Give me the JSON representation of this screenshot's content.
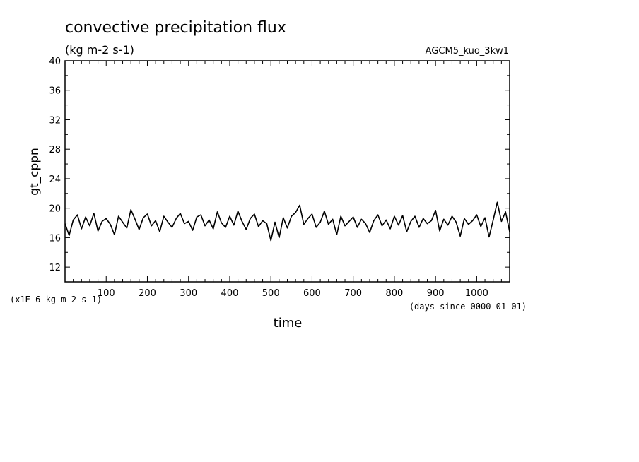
{
  "chart_data": {
    "type": "line",
    "title": "convective precipitation flux",
    "subtitle": "(kg m-2 s-1)",
    "dataset_label": "AGCM5_kuo_3kw1",
    "xlabel": "time",
    "ylabel": "gt_cppn",
    "x_unit_note": "(days since 0000-01-01)",
    "y_unit_note": "(x1E-6 kg m-2 s-1)",
    "xlim": [
      0,
      1080
    ],
    "ylim": [
      10,
      40
    ],
    "x_ticks": [
      100,
      200,
      300,
      400,
      500,
      600,
      700,
      800,
      900,
      1000
    ],
    "x_tick_labels": [
      "100",
      "200",
      "300",
      "400",
      "500",
      "600",
      "700",
      "800",
      "900",
      "1000"
    ],
    "y_ticks": [
      12,
      16,
      20,
      24,
      28,
      32,
      36,
      40
    ],
    "y_tick_labels": [
      "12",
      "16",
      "20",
      "24",
      "28",
      "32",
      "36",
      "40"
    ],
    "grid": false,
    "series": [
      {
        "color": "#000000",
        "x": [
          0,
          10,
          20,
          30,
          40,
          50,
          60,
          70,
          80,
          90,
          100,
          110,
          120,
          130,
          140,
          150,
          160,
          170,
          180,
          190,
          200,
          210,
          220,
          230,
          240,
          250,
          260,
          270,
          280,
          290,
          300,
          310,
          320,
          330,
          340,
          350,
          360,
          370,
          380,
          390,
          400,
          410,
          420,
          430,
          440,
          450,
          460,
          470,
          480,
          490,
          500,
          510,
          520,
          530,
          540,
          550,
          560,
          570,
          580,
          590,
          600,
          610,
          620,
          630,
          640,
          650,
          660,
          670,
          680,
          690,
          700,
          710,
          720,
          730,
          740,
          750,
          760,
          770,
          780,
          790,
          800,
          810,
          820,
          830,
          840,
          850,
          860,
          870,
          880,
          890,
          900,
          910,
          920,
          930,
          940,
          950,
          960,
          970,
          980,
          990,
          1000,
          1010,
          1020,
          1030,
          1040,
          1050,
          1060,
          1070,
          1080
        ],
        "y": [
          17.9,
          16.3,
          18.4,
          19.1,
          17.2,
          18.8,
          17.6,
          19.3,
          16.9,
          18.2,
          18.6,
          17.8,
          16.4,
          18.9,
          18.1,
          17.3,
          19.8,
          18.5,
          17.1,
          18.7,
          19.2,
          17.6,
          18.3,
          16.8,
          18.9,
          18.1,
          17.4,
          18.6,
          19.3,
          17.9,
          18.2,
          17.0,
          18.8,
          19.1,
          17.6,
          18.4,
          17.2,
          19.5,
          18.0,
          17.4,
          18.9,
          17.7,
          19.6,
          18.2,
          17.1,
          18.6,
          19.2,
          17.5,
          18.3,
          17.9,
          15.6,
          18.1,
          16.0,
          18.7,
          17.3,
          18.9,
          19.4,
          20.4,
          17.8,
          18.6,
          19.2,
          17.4,
          18.1,
          19.6,
          17.8,
          18.5,
          16.4,
          18.9,
          17.6,
          18.2,
          18.8,
          17.4,
          18.5,
          17.9,
          16.7,
          18.3,
          19.1,
          17.6,
          18.4,
          17.2,
          18.9,
          17.7,
          19.0,
          16.8,
          18.2,
          18.9,
          17.4,
          18.6,
          17.9,
          18.3,
          19.7,
          16.9,
          18.5,
          17.7,
          18.9,
          18.1,
          16.2,
          18.6,
          17.8,
          18.3,
          19.1,
          17.5,
          18.7,
          16.1,
          18.4,
          20.8,
          18.2,
          19.5,
          16.8
        ]
      }
    ]
  }
}
